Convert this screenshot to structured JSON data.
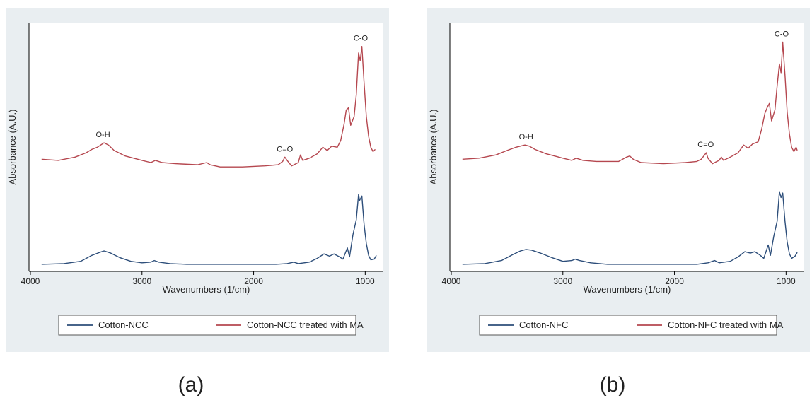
{
  "chart_data": [
    {
      "type": "line",
      "caption": "(a)",
      "xlabel": "Wavenumbers (1/cm)",
      "ylabel": "Absorbance (A.U.)",
      "xlim": [
        4000,
        850
      ],
      "x_reversed": true,
      "x_ticks": [
        4000,
        3000,
        2000,
        1000
      ],
      "y_ticks": [],
      "grid": false,
      "legend_position": "bottom",
      "annotations": [
        {
          "text": "O-H",
          "x": 3350,
          "series": 1
        },
        {
          "text": "C=O",
          "x": 1720,
          "series": 1
        },
        {
          "text": "C-O",
          "x": 1040,
          "series": 1
        }
      ],
      "series": [
        {
          "name": "Cotton-NCC",
          "color": "#2d4e7a",
          "points": [
            [
              3900,
              0.02
            ],
            [
              3700,
              0.03
            ],
            [
              3550,
              0.06
            ],
            [
              3450,
              0.14
            ],
            [
              3380,
              0.18
            ],
            [
              3340,
              0.2
            ],
            [
              3280,
              0.17
            ],
            [
              3200,
              0.11
            ],
            [
              3100,
              0.06
            ],
            [
              3000,
              0.04
            ],
            [
              2920,
              0.05
            ],
            [
              2890,
              0.07
            ],
            [
              2850,
              0.05
            ],
            [
              2750,
              0.03
            ],
            [
              2600,
              0.02
            ],
            [
              2400,
              0.02
            ],
            [
              2200,
              0.02
            ],
            [
              2000,
              0.02
            ],
            [
              1800,
              0.02
            ],
            [
              1700,
              0.03
            ],
            [
              1640,
              0.05
            ],
            [
              1600,
              0.03
            ],
            [
              1500,
              0.05
            ],
            [
              1430,
              0.1
            ],
            [
              1370,
              0.16
            ],
            [
              1320,
              0.13
            ],
            [
              1280,
              0.16
            ],
            [
              1230,
              0.12
            ],
            [
              1200,
              0.09
            ],
            [
              1160,
              0.24
            ],
            [
              1140,
              0.12
            ],
            [
              1110,
              0.42
            ],
            [
              1080,
              0.62
            ],
            [
              1060,
              0.96
            ],
            [
              1050,
              0.88
            ],
            [
              1030,
              0.94
            ],
            [
              1010,
              0.55
            ],
            [
              990,
              0.3
            ],
            [
              970,
              0.14
            ],
            [
              950,
              0.08
            ],
            [
              920,
              0.09
            ],
            [
              900,
              0.14
            ]
          ]
        },
        {
          "name": "Cotton-NCC treated with MA",
          "color": "#b5474f",
          "points": [
            [
              3900,
              0.03
            ],
            [
              3750,
              0.02
            ],
            [
              3600,
              0.05
            ],
            [
              3500,
              0.09
            ],
            [
              3450,
              0.12
            ],
            [
              3400,
              0.14
            ],
            [
              3340,
              0.18
            ],
            [
              3300,
              0.16
            ],
            [
              3250,
              0.11
            ],
            [
              3150,
              0.06
            ],
            [
              3000,
              0.02
            ],
            [
              2920,
              0.0
            ],
            [
              2880,
              0.02
            ],
            [
              2820,
              0.0
            ],
            [
              2700,
              -0.01
            ],
            [
              2500,
              -0.02
            ],
            [
              2420,
              0.0
            ],
            [
              2390,
              -0.02
            ],
            [
              2300,
              -0.04
            ],
            [
              2100,
              -0.04
            ],
            [
              1900,
              -0.03
            ],
            [
              1780,
              -0.02
            ],
            [
              1740,
              0.01
            ],
            [
              1720,
              0.05
            ],
            [
              1700,
              0.02
            ],
            [
              1660,
              -0.03
            ],
            [
              1600,
              0.0
            ],
            [
              1580,
              0.07
            ],
            [
              1560,
              0.02
            ],
            [
              1500,
              0.04
            ],
            [
              1430,
              0.08
            ],
            [
              1380,
              0.14
            ],
            [
              1340,
              0.11
            ],
            [
              1300,
              0.15
            ],
            [
              1250,
              0.14
            ],
            [
              1220,
              0.2
            ],
            [
              1190,
              0.35
            ],
            [
              1170,
              0.48
            ],
            [
              1150,
              0.5
            ],
            [
              1130,
              0.34
            ],
            [
              1100,
              0.42
            ],
            [
              1080,
              0.62
            ],
            [
              1060,
              1.0
            ],
            [
              1045,
              0.93
            ],
            [
              1030,
              1.06
            ],
            [
              1010,
              0.72
            ],
            [
              990,
              0.42
            ],
            [
              970,
              0.24
            ],
            [
              950,
              0.14
            ],
            [
              930,
              0.1
            ],
            [
              910,
              0.12
            ]
          ]
        }
      ]
    },
    {
      "type": "line",
      "caption": "(b)",
      "xlabel": "Wavenumbers (1/cm)",
      "ylabel": "Absorbance (A.U.)",
      "xlim": [
        4000,
        850
      ],
      "x_reversed": true,
      "x_ticks": [
        4000,
        3000,
        2000,
        1000
      ],
      "y_ticks": [],
      "grid": false,
      "legend_position": "bottom",
      "annotations": [
        {
          "text": "O-H",
          "x": 3330,
          "series": 1
        },
        {
          "text": "C=O",
          "x": 1720,
          "series": 1
        },
        {
          "text": "C-O",
          "x": 1040,
          "series": 1
        }
      ],
      "series": [
        {
          "name": "Cotton-NFC",
          "color": "#2d4e7a",
          "points": [
            [
              3900,
              0.02
            ],
            [
              3700,
              0.03
            ],
            [
              3550,
              0.07
            ],
            [
              3450,
              0.15
            ],
            [
              3380,
              0.2
            ],
            [
              3330,
              0.22
            ],
            [
              3280,
              0.21
            ],
            [
              3200,
              0.17
            ],
            [
              3100,
              0.11
            ],
            [
              3000,
              0.06
            ],
            [
              2920,
              0.07
            ],
            [
              2890,
              0.09
            ],
            [
              2850,
              0.07
            ],
            [
              2750,
              0.04
            ],
            [
              2600,
              0.02
            ],
            [
              2400,
              0.02
            ],
            [
              2200,
              0.02
            ],
            [
              2000,
              0.02
            ],
            [
              1800,
              0.02
            ],
            [
              1700,
              0.04
            ],
            [
              1640,
              0.07
            ],
            [
              1600,
              0.04
            ],
            [
              1500,
              0.06
            ],
            [
              1430,
              0.12
            ],
            [
              1370,
              0.19
            ],
            [
              1320,
              0.17
            ],
            [
              1280,
              0.19
            ],
            [
              1230,
              0.14
            ],
            [
              1200,
              0.1
            ],
            [
              1160,
              0.28
            ],
            [
              1140,
              0.14
            ],
            [
              1110,
              0.4
            ],
            [
              1080,
              0.6
            ],
            [
              1060,
              1.0
            ],
            [
              1045,
              0.92
            ],
            [
              1030,
              0.98
            ],
            [
              1010,
              0.6
            ],
            [
              990,
              0.32
            ],
            [
              970,
              0.16
            ],
            [
              950,
              0.1
            ],
            [
              920,
              0.13
            ],
            [
              900,
              0.18
            ]
          ]
        },
        {
          "name": "Cotton-NFC treated with MA",
          "color": "#b5474f",
          "points": [
            [
              3900,
              0.03
            ],
            [
              3750,
              0.04
            ],
            [
              3600,
              0.07
            ],
            [
              3500,
              0.11
            ],
            [
              3420,
              0.14
            ],
            [
              3340,
              0.16
            ],
            [
              3300,
              0.15
            ],
            [
              3250,
              0.12
            ],
            [
              3150,
              0.08
            ],
            [
              3000,
              0.04
            ],
            [
              2920,
              0.02
            ],
            [
              2880,
              0.04
            ],
            [
              2820,
              0.02
            ],
            [
              2700,
              0.01
            ],
            [
              2500,
              0.01
            ],
            [
              2430,
              0.05
            ],
            [
              2400,
              0.06
            ],
            [
              2370,
              0.03
            ],
            [
              2300,
              0.0
            ],
            [
              2100,
              -0.01
            ],
            [
              1900,
              0.0
            ],
            [
              1800,
              0.01
            ],
            [
              1760,
              0.03
            ],
            [
              1730,
              0.07
            ],
            [
              1715,
              0.09
            ],
            [
              1700,
              0.04
            ],
            [
              1660,
              -0.01
            ],
            [
              1600,
              0.02
            ],
            [
              1580,
              0.05
            ],
            [
              1560,
              0.02
            ],
            [
              1500,
              0.05
            ],
            [
              1430,
              0.09
            ],
            [
              1380,
              0.16
            ],
            [
              1340,
              0.13
            ],
            [
              1300,
              0.17
            ],
            [
              1250,
              0.19
            ],
            [
              1220,
              0.3
            ],
            [
              1190,
              0.45
            ],
            [
              1170,
              0.5
            ],
            [
              1150,
              0.54
            ],
            [
              1130,
              0.38
            ],
            [
              1100,
              0.48
            ],
            [
              1080,
              0.7
            ],
            [
              1060,
              0.9
            ],
            [
              1045,
              0.82
            ],
            [
              1030,
              1.1
            ],
            [
              1010,
              0.8
            ],
            [
              990,
              0.46
            ],
            [
              970,
              0.26
            ],
            [
              950,
              0.14
            ],
            [
              930,
              0.1
            ],
            [
              910,
              0.14
            ],
            [
              900,
              0.11
            ]
          ]
        }
      ]
    }
  ]
}
